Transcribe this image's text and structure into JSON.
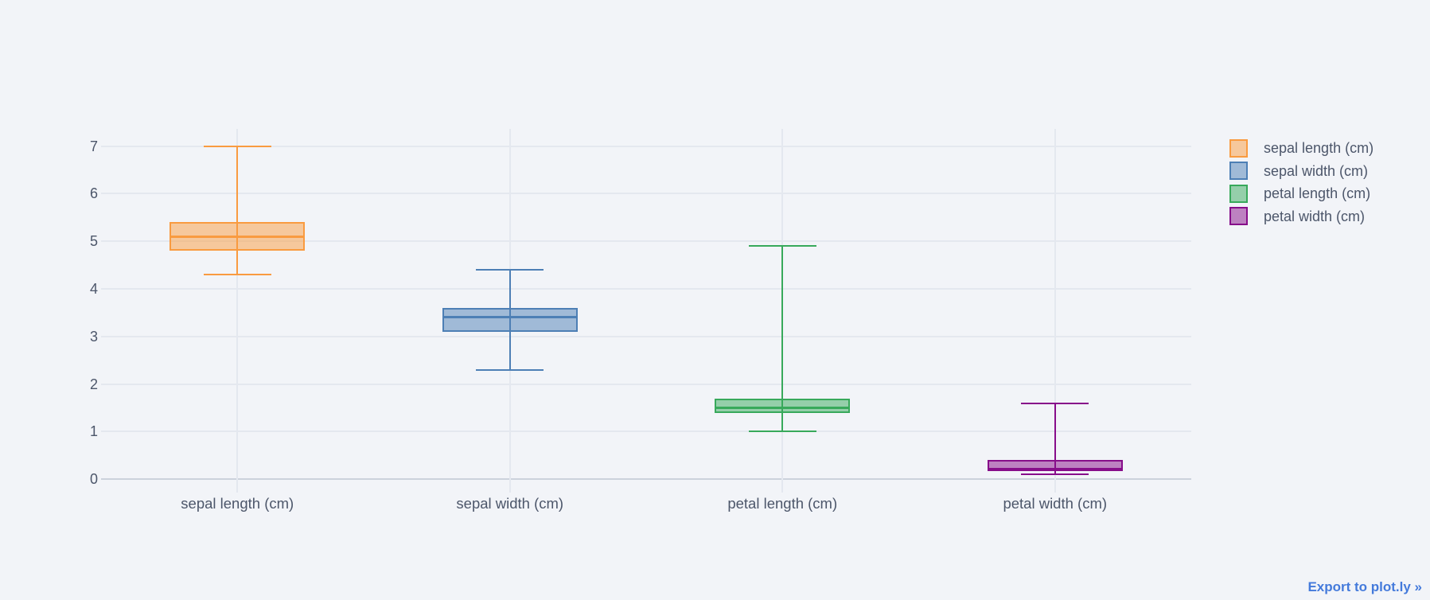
{
  "chart_data": {
    "type": "box",
    "title": "",
    "categories": [
      "sepal length (cm)",
      "sepal width (cm)",
      "petal length (cm)",
      "petal width (cm)"
    ],
    "series": [
      {
        "name": "sepal length (cm)",
        "color": "#f99b40",
        "lower_whisker": 4.3,
        "q1": 4.8,
        "median": 5.1,
        "q3": 5.4,
        "upper_whisker": 7.0
      },
      {
        "name": "sepal width (cm)",
        "color": "#4d7fb5",
        "lower_whisker": 2.3,
        "q1": 3.1,
        "median": 3.4,
        "q3": 3.6,
        "upper_whisker": 4.4
      },
      {
        "name": "petal length (cm)",
        "color": "#38a95b",
        "lower_whisker": 1.0,
        "q1": 1.4,
        "median": 1.5,
        "q3": 1.7,
        "upper_whisker": 4.9
      },
      {
        "name": "petal width (cm)",
        "color": "#870d8a",
        "lower_whisker": 0.1,
        "q1": 0.2,
        "median": 0.2,
        "q3": 0.4,
        "upper_whisker": 1.6
      }
    ],
    "y_ticks": [
      0,
      1,
      2,
      3,
      4,
      5,
      6,
      7
    ],
    "ylim": [
      -0.28,
      7.36
    ],
    "xlabel": "",
    "ylabel": "",
    "grid": true,
    "legend_position": "top-right",
    "fill_opacity": 0.5
  },
  "legend": {
    "items": [
      "sepal length (cm)",
      "sepal width (cm)",
      "petal length (cm)",
      "petal width (cm)"
    ]
  },
  "export_link": {
    "label": "Export to plot.ly »"
  },
  "colors": {
    "background": "#f2f4f8",
    "gridline": "#e4e8ef",
    "zeroline": "#ccd2dc",
    "text": "#4c566a",
    "link": "#447adb"
  }
}
